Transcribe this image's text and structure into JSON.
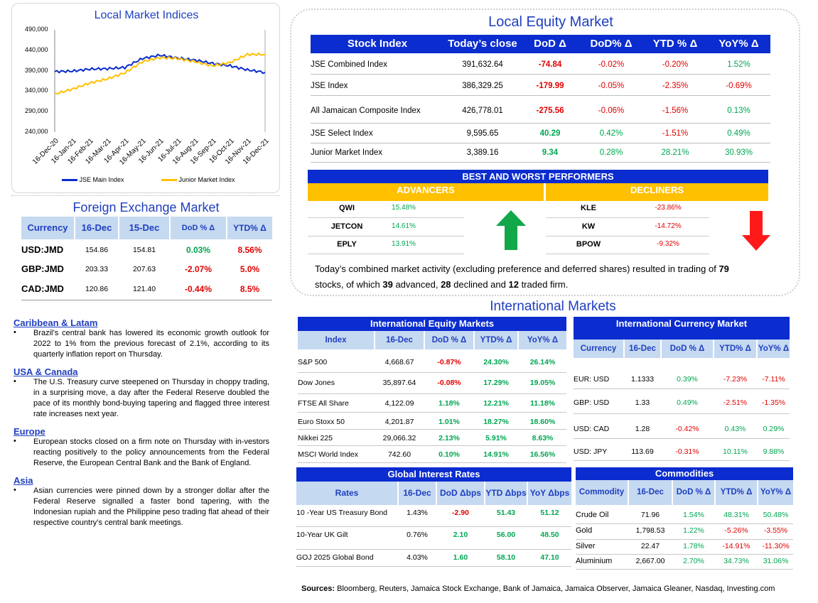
{
  "chart_data": {
    "type": "line",
    "title": "Local Market Indices",
    "xlabel": "",
    "ylabel": "",
    "ylim": [
      240000,
      490000
    ],
    "yticks": [
      "490,000",
      "440,000",
      "390,000",
      "340,000",
      "290,000",
      "240,000"
    ],
    "categories": [
      "16-Dec-20",
      "16-Jan-21",
      "16-Feb-21",
      "16-Mar-21",
      "16-Apr-21",
      "16-May-21",
      "16-Jun-21",
      "16-Jul-21",
      "16-Aug-21",
      "16-Sep-21",
      "16-Oct-21",
      "16-Nov-21",
      "16-Dec-21"
    ],
    "series": [
      {
        "name": "JSE Main Index",
        "color": "#0b2ccf",
        "values": [
          388000,
          389000,
          394000,
          395000,
          398000,
          420000,
          428000,
          421000,
          416000,
          408000,
          402000,
          392000,
          386000
        ]
      },
      {
        "name": "Junior Market Index",
        "color": "#ffc000",
        "values": [
          333000,
          345000,
          360000,
          370000,
          385000,
          412000,
          422000,
          420000,
          412000,
          402000,
          410000,
          430000,
          430000
        ]
      }
    ],
    "legend": "bottom"
  },
  "local_equity": {
    "title": "Local Equity Market",
    "headers": [
      "Stock Index",
      "Today’s close",
      "DoD  Δ",
      "DoD% Δ",
      "YTD % Δ",
      "YoY% Δ"
    ],
    "rows": [
      {
        "name": "JSE Combined Index",
        "close": "391,632.64",
        "dod": "-74.84",
        "dodp": "-0.02%",
        "ytd": "-0.20%",
        "yoy": "1.52%"
      },
      {
        "name": "JSE Index",
        "close": "386,329.25",
        "dod": "-179.99",
        "dodp": "-0.05%",
        "ytd": "-2.35%",
        "yoy": "-0.69%"
      },
      {
        "name": "All Jamaican Composite Index",
        "close": "426,778.01",
        "dod": "-275.56",
        "dodp": "-0.06%",
        "ytd": "-1.56%",
        "yoy": "0.13%"
      },
      {
        "name": "JSE Select Index",
        "close": "9,595.65",
        "dod": "40.29",
        "dodp": "0.42%",
        "ytd": "-1.51%",
        "yoy": "0.49%"
      },
      {
        "name": "Junior Market Index",
        "close": "3,389.16",
        "dod": "9.34",
        "dodp": "0.28%",
        "ytd": "28.21%",
        "yoy": "30.93%"
      }
    ],
    "performers_title": "BEST AND WORST PERFORMERS",
    "advancers_label": "ADVANCERS",
    "decliners_label": "DECLINERS",
    "advancers": [
      {
        "sym": "QWI",
        "val": "15.48%"
      },
      {
        "sym": "JETCON",
        "val": "14.61%"
      },
      {
        "sym": "EPLY",
        "val": "13.91%"
      }
    ],
    "decliners": [
      {
        "sym": "KLE",
        "val": "-23.86%"
      },
      {
        "sym": "KW",
        "val": "-14.72%"
      },
      {
        "sym": "BPOW",
        "val": "-9.32%"
      }
    ],
    "summary_a": "Today’s combined market activity (excluding preference and deferred shares) resulted in trading of ",
    "summary_n1": "79",
    "summary_b": "stocks, of which ",
    "summary_n2": "39",
    "summary_c": " advanced, ",
    "summary_n3": "28",
    "summary_d": " declined and ",
    "summary_n4": "12",
    "summary_e": " traded firm."
  },
  "fx": {
    "title": "Foreign Exchange Market",
    "headers": [
      "Currency",
      "16-Dec",
      "15-Dec",
      "DoD % Δ",
      "YTD% Δ"
    ],
    "rows": [
      {
        "pair": "USD:JMD",
        "a": "154.86",
        "b": "154.81",
        "dod": "0.03%",
        "ytd": "8.56%"
      },
      {
        "pair": "GBP:JMD",
        "a": "203.33",
        "b": "207.63",
        "dod": "-2.07%",
        "ytd": "5.0%"
      },
      {
        "pair": "CAD:JMD",
        "a": "120.86",
        "b": "121.40",
        "dod": "-0.44%",
        "ytd": "8.5%"
      }
    ]
  },
  "news": [
    {
      "region": "Caribbean & Latam",
      "text": "Brazil’s central bank has lowered its economic growth outlook for 2022 to 1% from the previous forecast of 2.1%, according to its quarterly inflation report on Thursday."
    },
    {
      "region": "USA & Canada",
      "text": "The U.S. Treasury curve steepened on Thursday in choppy trading, in a surprising move, a day after the Federal Reserve doubled the pace of its monthly bond-buying tapering and flagged three interest rate increases next year."
    },
    {
      "region": "Europe",
      "text": "European stocks closed on a firm note on Thursday with in-vestors reacting positively to the policy announcements from the Federal Reserve, the European Central Bank and the Bank of England."
    },
    {
      "region": "Asia",
      "text": "Asian currencies were pinned down by a stronger dollar after the Federal Reserve signalled a faster bond tapering, with the Indonesian rupiah and the Philippine peso trading flat ahead of their respective country’s central bank meetings."
    }
  ],
  "intl_title": "International Markets",
  "intl_equity": {
    "title": "International Equity Markets",
    "headers": [
      "Index",
      "16-Dec",
      "DoD % Δ",
      "YTD% Δ",
      "YoY% Δ"
    ],
    "rows": [
      {
        "name": "S&P 500",
        "val": "4,668.67",
        "dod": "-0.87%",
        "ytd": "24.30%",
        "yoy": "26.14%"
      },
      {
        "name": "Dow Jones",
        "val": "35,897.64",
        "dod": "-0.08%",
        "ytd": "17.29%",
        "yoy": "19.05%"
      },
      {
        "name": "FTSE All Share",
        "val": "4,122.09",
        "dod": "1.18%",
        "ytd": "12.21%",
        "yoy": "11.18%"
      },
      {
        "name": "Euro Stoxx 50",
        "val": "4,201.87",
        "dod": "1.01%",
        "ytd": "18.27%",
        "yoy": "18.60%"
      },
      {
        "name": "Nikkei 225",
        "val": "29,066.32",
        "dod": "2.13%",
        "ytd": "5.91%",
        "yoy": "8.63%"
      },
      {
        "name": "MSCI World Index",
        "val": "742.60",
        "dod": "0.10%",
        "ytd": "14.91%",
        "yoy": "16.56%"
      }
    ]
  },
  "intl_fx": {
    "title": "International Currency Market",
    "headers": [
      "Currency",
      "16-Dec",
      "DoD % Δ",
      "YTD% Δ",
      "YoY% Δ"
    ],
    "rows": [
      {
        "pair": "EUR: USD",
        "val": "1.1333",
        "dod": "0.39%",
        "ytd": "-7.23%",
        "yoy": "-7.11%"
      },
      {
        "pair": "GBP: USD",
        "val": "1.33",
        "dod": "0.49%",
        "ytd": "-2.51%",
        "yoy": "-1.35%"
      },
      {
        "pair": "USD: CAD",
        "val": "1.28",
        "dod": "-0.42%",
        "ytd": "0.43%",
        "yoy": "0.29%"
      },
      {
        "pair": "USD: JPY",
        "val": "113.69",
        "dod": "-0.31%",
        "ytd": "10.11%",
        "yoy": "9.88%"
      }
    ]
  },
  "rates": {
    "title": "Global Interest Rates",
    "headers": [
      "Rates",
      "16-Dec",
      "DoD Δbps",
      "YTD Δbps",
      "YoY Δbps"
    ],
    "rows": [
      {
        "name": "10 -Year US Treasury Bond",
        "val": "1.43%",
        "dod": "-2.90",
        "ytd": "51.43",
        "yoy": "51.12"
      },
      {
        "name": "10-Year UK Gilt",
        "val": "0.76%",
        "dod": "2.10",
        "ytd": "56.00",
        "yoy": "48.50"
      },
      {
        "name": "GOJ 2025 Global Bond",
        "val": "4.03%",
        "dod": "1.60",
        "ytd": "58.10",
        "yoy": "47.10"
      }
    ]
  },
  "commodities": {
    "title": "Commodities",
    "headers": [
      "Commodity",
      "16-Dec",
      "DoD % Δ",
      "YTD% Δ",
      "YoY% Δ"
    ],
    "rows": [
      {
        "name": "Crude Oil",
        "val": "71.96",
        "dod": "1.54%",
        "ytd": "48.31%",
        "yoy": "50.48%"
      },
      {
        "name": "Gold",
        "val": "1,798.53",
        "dod": "1.22%",
        "ytd": "-5.26%",
        "yoy": "-3.55%"
      },
      {
        "name": "Silver",
        "val": "22.47",
        "dod": "1.78%",
        "ytd": "-14.91%",
        "yoy": "-11.30%"
      },
      {
        "name": "Aluminium",
        "val": "2,667.00",
        "dod": "2.70%",
        "ytd": "34.73%",
        "yoy": "31.06%"
      }
    ]
  },
  "sources_label": "Sources:",
  "sources_text": " Bloomberg, Reuters, Jamaica Stock Exchange, Bank of Jamaica, Jamaica Observer, Jamaica Gleaner, Nasdaq, Investing.com"
}
